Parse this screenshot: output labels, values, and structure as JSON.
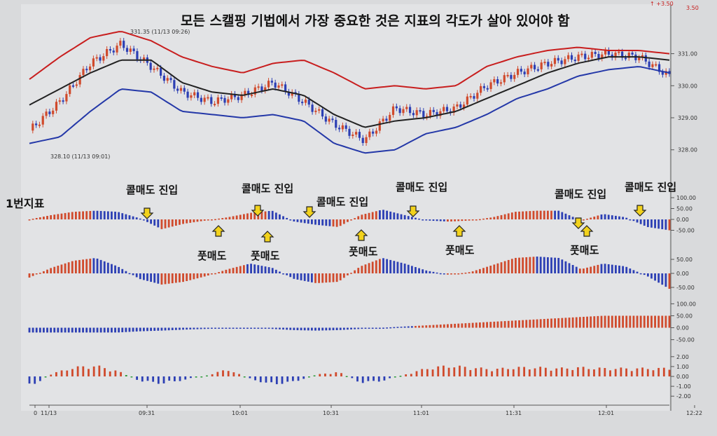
{
  "title": "모든 스캘핑 기법에서 가장 중요한 것은 지표의 각도가 살아 있어야 함",
  "header_readout": [
    "↑ +3.50",
    "3.50"
  ],
  "price_panel": {
    "y_ticks": [
      "331.00",
      "330.00",
      "329.00",
      "328.00"
    ],
    "high_annotation": "331.35 (11/13 09:26)",
    "low_annotation": "328.10 (11/13 09:01)"
  },
  "annotations": {
    "indicator1_label": "1번지표",
    "sell_entries": [
      "콜매도 진입",
      "콜매도 진입",
      "콜매도 진입",
      "콜매도 진입",
      "콜매도 진입",
      "콜매도 진입"
    ],
    "buy_entries": [
      "풋매도",
      "풋매도",
      "풋매도",
      "풋매도",
      "풋매도"
    ]
  },
  "indicator_ticks": {
    "ind1": [
      "100.00",
      "50.00",
      "0.00",
      "-50.00"
    ],
    "ind2": [
      "50.00",
      "0.00",
      "-50.00"
    ],
    "ind3": [
      "100.00",
      "50.00",
      "0.00",
      "-50.00"
    ],
    "ind4": [
      "2.00",
      "1.00",
      "0.00",
      "-1.00",
      "-2.00"
    ]
  },
  "x_axis": [
    "0",
    "11/13",
    "09:31",
    "10:01",
    "10:31",
    "11:01",
    "11:31",
    "12:01",
    "12:22"
  ],
  "colors": {
    "up": "#d04a2c",
    "down": "#2c3fb4",
    "upper_band": "#c81e1e",
    "lower_band": "#2438a8",
    "mid": "#222222",
    "flat": "#2e9a3a"
  },
  "chart_data": [
    {
      "type": "line",
      "x": [
        "09:01",
        "09:11",
        "09:21",
        "09:26",
        "09:31",
        "09:41",
        "09:51",
        "10:01",
        "10:11",
        "10:21",
        "10:31",
        "10:41",
        "10:51",
        "11:01",
        "11:11",
        "11:21",
        "11:31",
        "11:41",
        "11:51",
        "12:01",
        "12:11",
        "12:22"
      ],
      "series": [
        {
          "values": [
            328.6,
            329.5,
            330.7,
            331.3,
            330.6,
            329.8,
            329.5,
            329.7,
            330.1,
            329.5,
            328.8,
            328.3,
            329.3,
            329.1,
            329.3,
            330.0,
            330.4,
            330.7,
            330.9,
            331.0,
            330.9,
            330.3
          ]
        },
        {
          "values": [
            330.2,
            330.9,
            331.5,
            331.7,
            331.4,
            330.9,
            330.6,
            330.4,
            330.7,
            330.8,
            330.4,
            329.9,
            330.0,
            329.9,
            330.0,
            330.6,
            330.9,
            331.1,
            331.2,
            331.1,
            331.1,
            331.0
          ]
        },
        {
          "values": [
            329.4,
            329.9,
            330.4,
            330.8,
            330.8,
            330.1,
            329.8,
            329.7,
            329.9,
            329.7,
            329.1,
            328.7,
            328.9,
            329.0,
            329.2,
            329.6,
            330.0,
            330.4,
            330.7,
            330.9,
            330.9,
            330.8
          ]
        },
        {
          "values": [
            328.2,
            328.4,
            329.2,
            329.9,
            329.8,
            329.2,
            329.1,
            329.0,
            329.1,
            328.9,
            328.2,
            327.9,
            328.0,
            328.5,
            328.7,
            329.1,
            329.6,
            329.9,
            330.3,
            330.5,
            330.6,
            330.4
          ]
        }
      ],
      "ylim": [
        327.6,
        331.8
      ]
    },
    {
      "type": "bar",
      "series": [
        {
          "values": [
            0,
            20,
            35,
            40,
            35,
            5,
            -45,
            -20,
            -5,
            10,
            30,
            40,
            -10,
            -25,
            -35,
            20,
            45,
            20,
            -5,
            -10,
            -5,
            10,
            35,
            40,
            40,
            -5,
            25,
            10,
            -35,
            -50
          ]
        }
      ],
      "ylim": [
        -100,
        100
      ]
    },
    {
      "type": "bar",
      "series": [
        {
          "values": [
            -15,
            20,
            45,
            55,
            25,
            -20,
            -40,
            -30,
            -10,
            15,
            35,
            20,
            -20,
            -35,
            -30,
            25,
            55,
            35,
            10,
            -5,
            5,
            30,
            55,
            60,
            55,
            15,
            35,
            25,
            -10,
            -55
          ]
        }
      ],
      "ylim": [
        -75,
        75
      ]
    },
    {
      "type": "bar",
      "series": [
        {
          "values": [
            -20,
            -20,
            -20,
            -20,
            -20,
            -15,
            -12,
            -8,
            -5,
            -2,
            0,
            -5,
            -10,
            -12,
            -10,
            -5,
            0,
            5,
            10,
            15,
            20,
            25,
            30,
            35,
            40,
            45,
            50,
            50,
            50,
            50
          ]
        }
      ],
      "ylim": [
        -60,
        110
      ]
    },
    {
      "type": "bar",
      "series": [
        {
          "values": [
            -1.2,
            0.3,
            1.0,
            1.2,
            0.6,
            -0.5,
            -0.8,
            -0.4,
            0.1,
            0.8,
            -0.3,
            -0.9,
            -0.6,
            0.2,
            0.5,
            -0.7,
            -0.5,
            0.2,
            0.9,
            1.2,
            1.0,
            0.8,
            1.0,
            1.0,
            0.9,
            1.0,
            0.9,
            0.9,
            0.9,
            0.9
          ]
        }
      ],
      "ylim": [
        -2.2,
        2.2
      ]
    }
  ]
}
